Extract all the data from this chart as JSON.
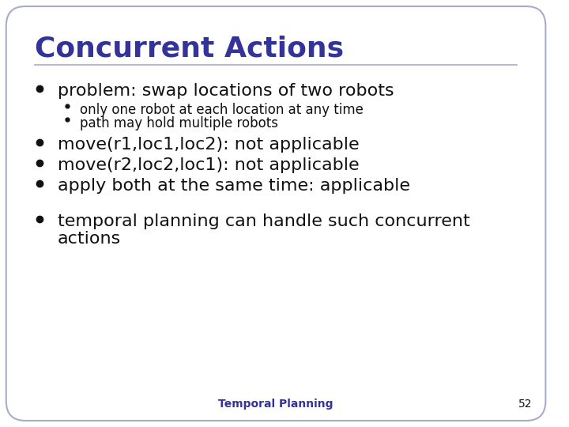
{
  "title": "Concurrent Actions",
  "title_color": "#333399",
  "title_fontsize": 26,
  "body_color": "#111111",
  "body_fontsize": 16,
  "sub_fontsize": 12,
  "footer_text": "Temporal Planning",
  "footer_page": "52",
  "footer_color": "#333399",
  "footer_fontsize": 10,
  "background_color": "#ffffff",
  "border_color": "#aaaacc",
  "line_color": "#aaaacc",
  "bullet1": "problem: swap locations of two robots",
  "sub_bullets": [
    "only one robot at each location at any time",
    "path may hold multiple robots"
  ],
  "bullet2": "move(r1,loc1,loc2): not applicable",
  "bullet3": "move(r2,loc2,loc1): not applicable",
  "bullet4": "apply both at the same time: applicable",
  "bullet5_line1": "temporal planning can handle such concurrent",
  "bullet5_line2": "actions"
}
